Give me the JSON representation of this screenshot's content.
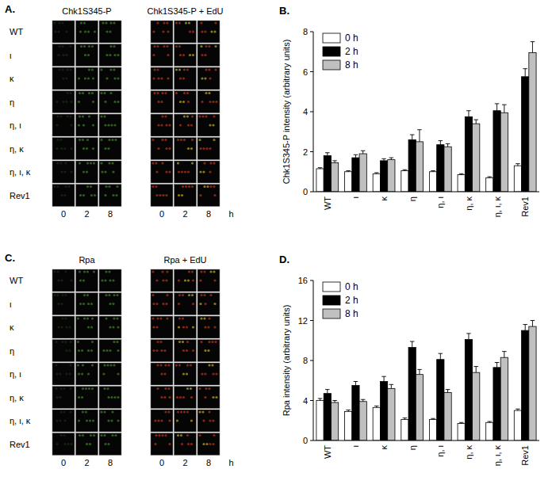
{
  "chart_data": [
    {
      "type": "bar",
      "annotations": [
        "B."
      ],
      "y_label": "Chk1S345-P intensity (arbitrary units)",
      "categories": [
        "WT",
        "ι",
        "κ",
        "η",
        "η, ι",
        "η, κ",
        "η, ι, κ",
        "Rev1"
      ],
      "series": [
        {
          "name": "0 h",
          "color": "#ffffff",
          "values": [
            1.15,
            1.0,
            0.9,
            1.05,
            1.0,
            0.85,
            0.7,
            1.3
          ],
          "errors": [
            0.05,
            0.05,
            0.05,
            0.05,
            0.05,
            0.05,
            0.05,
            0.1
          ]
        },
        {
          "name": "2 h",
          "color": "#000000",
          "values": [
            1.8,
            1.7,
            1.55,
            2.6,
            2.35,
            3.75,
            4.05,
            5.75
          ],
          "errors": [
            0.15,
            0.15,
            0.1,
            0.25,
            0.2,
            0.3,
            0.35,
            0.4
          ]
        },
        {
          "name": "8 h",
          "color": "#c0c0c0",
          "values": [
            1.45,
            1.9,
            1.6,
            2.5,
            2.25,
            3.4,
            3.95,
            6.95
          ],
          "errors": [
            0.1,
            0.15,
            0.1,
            0.6,
            0.15,
            0.2,
            0.4,
            0.55
          ]
        }
      ],
      "ylim": [
        0,
        8
      ],
      "yticks": [
        0,
        2,
        4,
        6,
        8
      ],
      "legend": "upper-left"
    },
    {
      "type": "bar",
      "annotations": [
        "D."
      ],
      "y_label": "Rpa intensity (arbitrary units)",
      "categories": [
        "WT",
        "ι",
        "κ",
        "η",
        "η, ι",
        "η, κ",
        "η, ι, κ",
        "Rev1"
      ],
      "series": [
        {
          "name": "0 h",
          "color": "#ffffff",
          "values": [
            4.0,
            2.9,
            3.3,
            2.1,
            2.1,
            1.7,
            1.8,
            3.0
          ],
          "errors": [
            0.2,
            0.15,
            0.15,
            0.15,
            0.1,
            0.1,
            0.1,
            0.15
          ]
        },
        {
          "name": "2 h",
          "color": "#000000",
          "values": [
            4.7,
            5.5,
            5.9,
            9.3,
            8.1,
            10.1,
            7.3,
            11.0
          ],
          "errors": [
            0.4,
            0.4,
            0.5,
            0.6,
            0.6,
            0.6,
            0.5,
            0.6
          ]
        },
        {
          "name": "8 h",
          "color": "#c0c0c0",
          "values": [
            3.8,
            3.9,
            5.2,
            6.6,
            4.8,
            6.8,
            8.3,
            11.4
          ],
          "errors": [
            0.2,
            0.2,
            0.4,
            0.5,
            0.3,
            0.6,
            0.6,
            0.6
          ]
        }
      ],
      "ylim": [
        0,
        16
      ],
      "yticks": [
        0,
        4,
        8,
        12,
        16
      ],
      "legend": "upper-left"
    }
  ],
  "image_panels": [
    {
      "annotation": "A.",
      "column_titles": [
        "Chk1S345-P",
        "Chk1S345-P + EdU"
      ],
      "rows": [
        "WT",
        "ι",
        "κ",
        "η",
        "η, ι",
        "η, κ",
        "η, ι, κ",
        "Rev1"
      ],
      "times": [
        0,
        2,
        8
      ],
      "unit": "h"
    },
    {
      "annotation": "C.",
      "column_titles": [
        "Rpa",
        "Rpa + EdU"
      ],
      "rows": [
        "WT",
        "ι",
        "κ",
        "η",
        "η, ι",
        "η, κ",
        "η, ι, κ",
        "Rev1"
      ],
      "times": [
        0,
        2,
        8
      ],
      "unit": "h"
    }
  ]
}
